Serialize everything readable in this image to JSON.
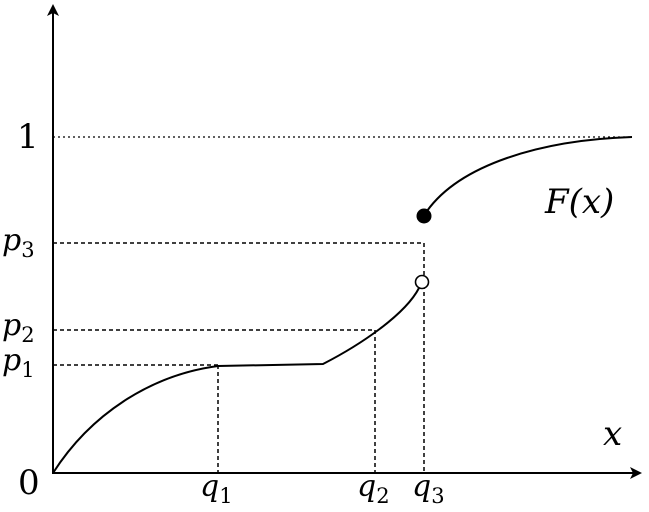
{
  "labels": {
    "y_one": "1",
    "origin": "0",
    "x_axis": "x",
    "function": "F(x)",
    "p1": {
      "base": "p",
      "sub": "1"
    },
    "p2": {
      "base": "p",
      "sub": "2"
    },
    "p3": {
      "base": "p",
      "sub": "3"
    },
    "q1": {
      "base": "q",
      "sub": "1"
    },
    "q2": {
      "base": "q",
      "sub": "2"
    },
    "q3": {
      "base": "q",
      "sub": "3"
    }
  }
}
